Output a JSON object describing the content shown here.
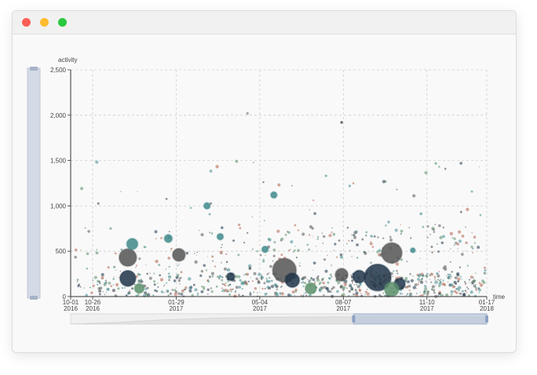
{
  "window": {
    "controls": [
      {
        "name": "close",
        "color": "#fe5f57"
      },
      {
        "name": "minimize",
        "color": "#febc2e"
      },
      {
        "name": "maximize",
        "color": "#28c840"
      }
    ]
  },
  "chart_data": {
    "type": "scatter",
    "title": "",
    "xlabel": "time",
    "ylabel": "activity",
    "ylim": [
      0,
      2500
    ],
    "y_ticks": [
      0,
      500,
      1000,
      1500,
      2000,
      2500
    ],
    "y_tick_labels": [
      "0",
      "500",
      "1,000",
      "1,500",
      "2,000",
      "2,500"
    ],
    "x_ticks": [
      {
        "date": "2016-10-01",
        "label": [
          "10-01",
          "2016"
        ]
      },
      {
        "date": "2016-10-26",
        "label": [
          "10-26",
          "2016"
        ]
      },
      {
        "date": "2017-01-29",
        "label": [
          "01-29",
          "2017"
        ]
      },
      {
        "date": "2017-05-04",
        "label": [
          "05-04",
          "2017"
        ]
      },
      {
        "date": "2017-08-07",
        "label": [
          "08-07",
          "2017"
        ]
      },
      {
        "date": "2017-11-10",
        "label": [
          "11-10",
          "2017"
        ]
      },
      {
        "date": "2018-01-17",
        "label": [
          "01-17",
          "2018"
        ]
      }
    ],
    "xlim": [
      "2016-10-01",
      "2018-01-17"
    ],
    "grid": true,
    "bubbles": [
      {
        "date": "2016-12-05",
        "y": 430,
        "r": 11,
        "color": "#555555"
      },
      {
        "date": "2016-12-05",
        "y": 200,
        "r": 10,
        "color": "#1e3448"
      },
      {
        "date": "2016-12-10",
        "y": 580,
        "r": 7,
        "color": "#3f8a8c"
      },
      {
        "date": "2016-12-18",
        "y": 90,
        "r": 6,
        "color": "#5a8f6a"
      },
      {
        "date": "2017-01-20",
        "y": 640,
        "r": 5,
        "color": "#3f8a8c"
      },
      {
        "date": "2017-02-01",
        "y": 460,
        "r": 8,
        "color": "#555555"
      },
      {
        "date": "2017-03-05",
        "y": 1000,
        "r": 4,
        "color": "#3f8a8c"
      },
      {
        "date": "2017-03-20",
        "y": 660,
        "r": 4,
        "color": "#3f8a8c"
      },
      {
        "date": "2017-04-01",
        "y": 220,
        "r": 5,
        "color": "#1e3448"
      },
      {
        "date": "2017-05-10",
        "y": 520,
        "r": 4,
        "color": "#3f8a8c"
      },
      {
        "date": "2017-05-20",
        "y": 1120,
        "r": 4,
        "color": "#3f8a8c"
      },
      {
        "date": "2017-06-01",
        "y": 290,
        "r": 15,
        "color": "#555555"
      },
      {
        "date": "2017-06-10",
        "y": 180,
        "r": 9,
        "color": "#1e3448"
      },
      {
        "date": "2017-07-01",
        "y": 90,
        "r": 7,
        "color": "#5a8f6a"
      },
      {
        "date": "2017-08-05",
        "y": 240,
        "r": 8,
        "color": "#555555"
      },
      {
        "date": "2017-08-25",
        "y": 220,
        "r": 8,
        "color": "#1e3448"
      },
      {
        "date": "2017-09-15",
        "y": 210,
        "r": 17,
        "color": "#1e3448"
      },
      {
        "date": "2017-10-01",
        "y": 480,
        "r": 13,
        "color": "#555555"
      },
      {
        "date": "2017-10-10",
        "y": 140,
        "r": 7,
        "color": "#1e3448"
      },
      {
        "date": "2017-10-01",
        "y": 80,
        "r": 9,
        "color": "#5a8f6a"
      },
      {
        "date": "2017-10-25",
        "y": 510,
        "r": 3,
        "color": "#3f8a8c"
      },
      {
        "date": "2017-08-05",
        "y": 1920,
        "r": 1,
        "color": "#333333"
      },
      {
        "date": "2017-04-20",
        "y": 2020,
        "r": 1,
        "color": "#888888"
      }
    ],
    "dataZoom": {
      "y_range_percent": [
        0,
        100
      ],
      "x_range_percent": [
        68,
        100
      ]
    }
  }
}
